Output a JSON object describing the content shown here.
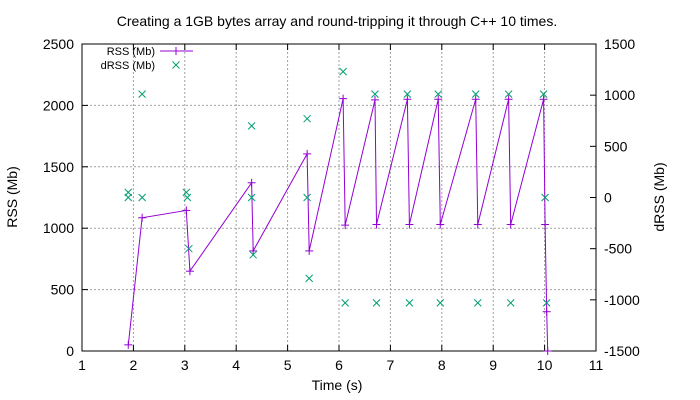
{
  "colors": {
    "rss": "#9400d3",
    "drss": "#009e73",
    "grid": "#a0a0a0",
    "axis": "#000000"
  },
  "chart_data": {
    "type": "line",
    "title": "Creating a 1GB bytes array and round-tripping it through C++ 10 times.",
    "xlabel": "Time (s)",
    "ylabel": "RSS (Mb)",
    "y2label": "dRSS (Mb)",
    "xlim": [
      1,
      11
    ],
    "ylim": [
      0,
      2500
    ],
    "y2lim": [
      -1500,
      1500
    ],
    "xticks": [
      "1",
      "2",
      "3",
      "4",
      "5",
      "6",
      "7",
      "8",
      "9",
      "10",
      "11"
    ],
    "yticks": [
      "0",
      "500",
      "1000",
      "1500",
      "2000",
      "2500"
    ],
    "y2ticks": [
      "-1500",
      "-1000",
      "-500",
      "0",
      "500",
      "1000",
      "1500"
    ],
    "grid": true,
    "legend_position": "top-left",
    "series": [
      {
        "name": "RSS (Mb)",
        "axis": "left",
        "style": "line+plus",
        "x": [
          1.9,
          2.17,
          3.03,
          3.1,
          4.3,
          4.33,
          5.38,
          5.42,
          6.08,
          6.12,
          6.7,
          6.73,
          7.33,
          7.37,
          7.93,
          7.97,
          8.66,
          8.7,
          9.3,
          9.34,
          9.98,
          10.01,
          10.04,
          10.06
        ],
        "y": [
          50,
          1085,
          1145,
          650,
          1370,
          815,
          1605,
          815,
          2055,
          1025,
          2045,
          1030,
          2050,
          1030,
          2050,
          1030,
          2050,
          1030,
          2050,
          1030,
          2050,
          1030,
          320,
          0
        ]
      },
      {
        "name": "dRSS (Mb)",
        "axis": "right",
        "style": "cross",
        "x": [
          1.9,
          1.9,
          2.17,
          2.17,
          3.03,
          3.05,
          3.08,
          4.3,
          4.3,
          4.33,
          5.38,
          5.38,
          5.42,
          6.08,
          6.12,
          6.7,
          6.73,
          7.33,
          7.37,
          7.93,
          7.97,
          8.66,
          8.7,
          9.3,
          9.34,
          9.98,
          10.01,
          10.04
        ],
        "y": [
          50,
          0,
          1010,
          0,
          50,
          0,
          -500,
          700,
          0,
          -560,
          770,
          0,
          -790,
          1230,
          -1030,
          1010,
          -1030,
          1010,
          -1030,
          1010,
          -1030,
          1010,
          -1030,
          1010,
          -1030,
          1010,
          0,
          -1030
        ]
      }
    ]
  }
}
